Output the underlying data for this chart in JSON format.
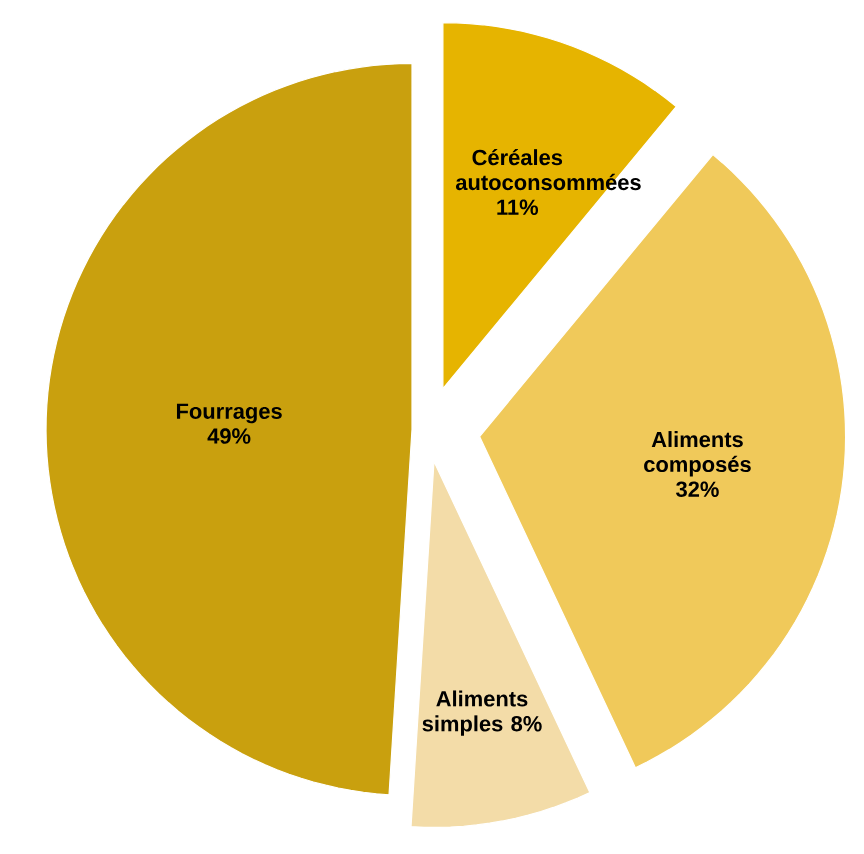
{
  "chart_data": {
    "type": "pie",
    "categories": [
      "Céréales autoconsommées",
      "Aliments composés",
      "Aliments simples",
      "Fourrages"
    ],
    "values": [
      11,
      32,
      8,
      49
    ],
    "value_labels": [
      "11%",
      "32%",
      "8%",
      "49%"
    ],
    "colors": [
      "#e6b400",
      "#f0c95a",
      "#f3dca8",
      "#c9a00e"
    ]
  }
}
